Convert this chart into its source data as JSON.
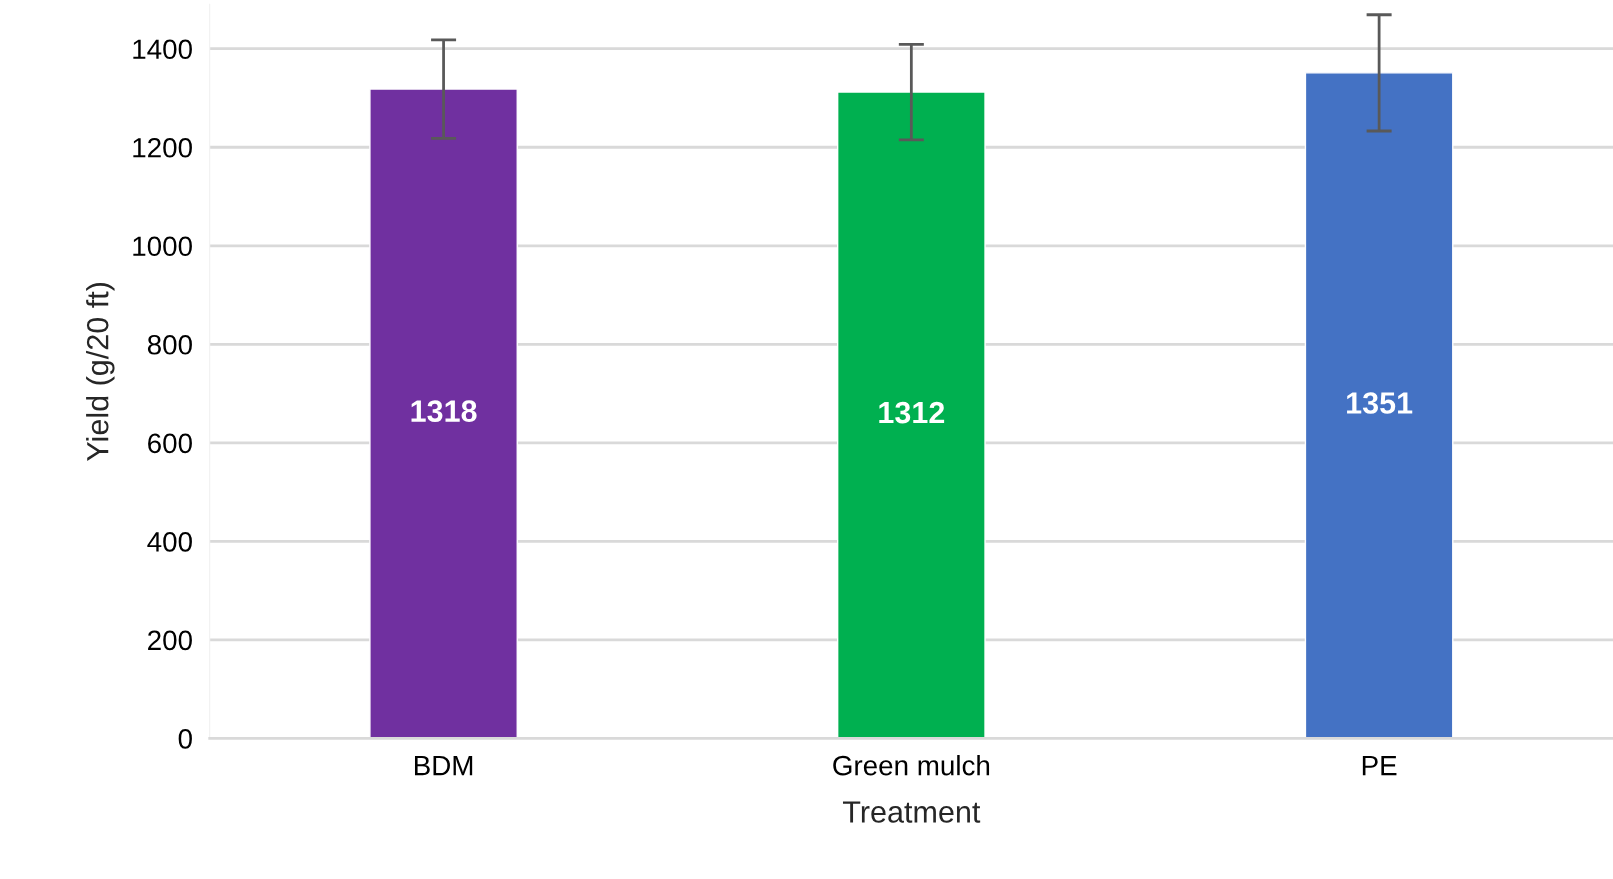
{
  "chart_data": {
    "type": "bar",
    "categories": [
      "BDM",
      "Green mulch",
      "PE"
    ],
    "values": [
      1318,
      1312,
      1351
    ],
    "colors": [
      "#7030a0",
      "#00b050",
      "#4472c4"
    ],
    "errors": [
      100,
      97,
      118
    ],
    "data_labels": true,
    "xlabel": "Treatment",
    "ylabel": "Yield (g/20 ft)",
    "ylim": [
      0,
      1490
    ],
    "yticks": [
      0,
      200,
      400,
      600,
      800,
      1000,
      1200,
      1400
    ],
    "grid": "y"
  }
}
